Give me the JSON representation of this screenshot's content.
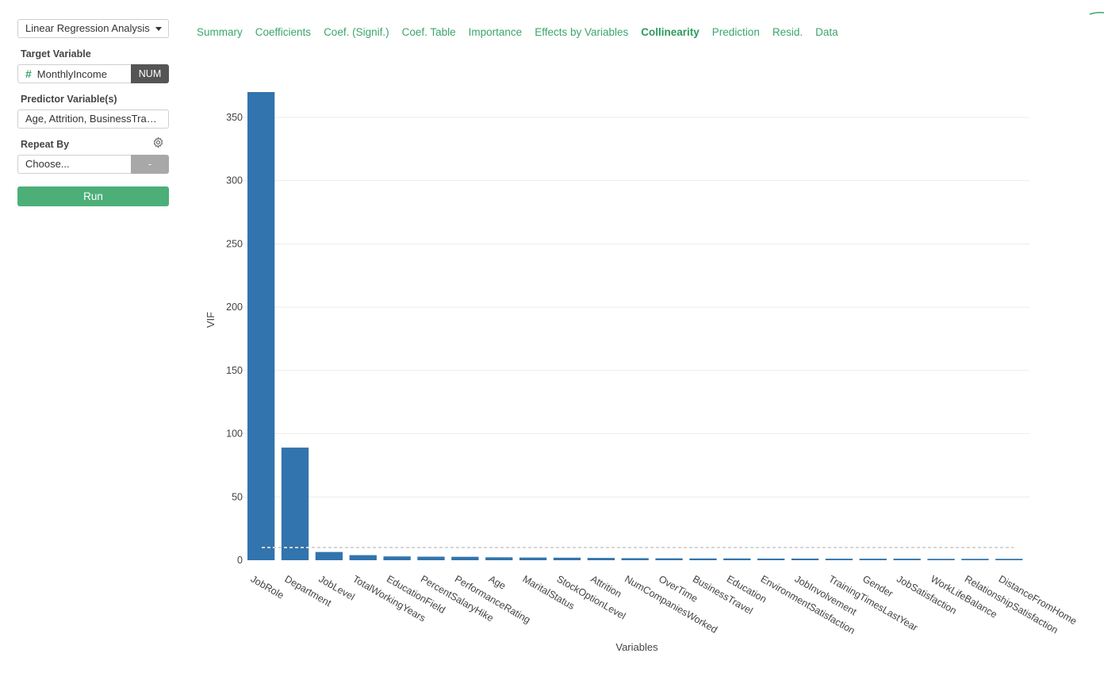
{
  "sidebar": {
    "analysis_select": "Linear Regression Analysis",
    "target_label": "Target Variable",
    "target_value": "MonthlyIncome",
    "target_type": "NUM",
    "predictor_label": "Predictor Variable(s)",
    "predictor_value": "Age, Attrition, BusinessTra…",
    "repeat_label": "Repeat By",
    "repeat_placeholder": "Choose...",
    "repeat_type": "-",
    "run_label": "Run",
    "icons": {
      "target_type_icon": "hash-icon",
      "repeat_settings_icon": "gear-icon",
      "select_caret": "caret-down-icon"
    }
  },
  "tabs": [
    {
      "label": "Summary",
      "active": false
    },
    {
      "label": "Coefficients",
      "active": false
    },
    {
      "label": "Coef. (Signif.)",
      "active": false
    },
    {
      "label": "Coef. Table",
      "active": false
    },
    {
      "label": "Importance",
      "active": false
    },
    {
      "label": "Effects by Variables",
      "active": false
    },
    {
      "label": "Collinearity",
      "active": true
    },
    {
      "label": "Prediction",
      "active": false
    },
    {
      "label": "Resid.",
      "active": false
    },
    {
      "label": "Data",
      "active": false
    }
  ],
  "colors": {
    "accent": "#3aa56b",
    "bar": "#3274ad",
    "run_button": "#4caf78"
  },
  "chart_data": {
    "type": "bar",
    "xlabel": "Variables",
    "ylabel": "VIF",
    "ylim": [
      0,
      370
    ],
    "yticks": [
      0,
      50,
      100,
      150,
      200,
      250,
      300,
      350
    ],
    "grid": true,
    "reference_line": 10,
    "categories": [
      "JobRole",
      "Department",
      "JobLevel",
      "TotalWorkingYears",
      "EducationField",
      "PercentSalaryHike",
      "PerformanceRating",
      "Age",
      "MaritalStatus",
      "StockOptionLevel",
      "Attrition",
      "NumCompaniesWorked",
      "OverTime",
      "BusinessTravel",
      "Education",
      "EnvironmentSatisfaction",
      "JobInvolvement",
      "TrainingTimesLastYear",
      "Gender",
      "JobSatisfaction",
      "WorkLifeBalance",
      "RelationshipSatisfaction",
      "DistanceFromHome"
    ],
    "values": [
      370,
      89,
      6.5,
      4,
      3,
      2.8,
      2.7,
      2.3,
      2.1,
      2,
      1.8,
      1.6,
      1.5,
      1.4,
      1.4,
      1.3,
      1.3,
      1.2,
      1.2,
      1.2,
      1.1,
      1.1,
      1.1
    ]
  }
}
